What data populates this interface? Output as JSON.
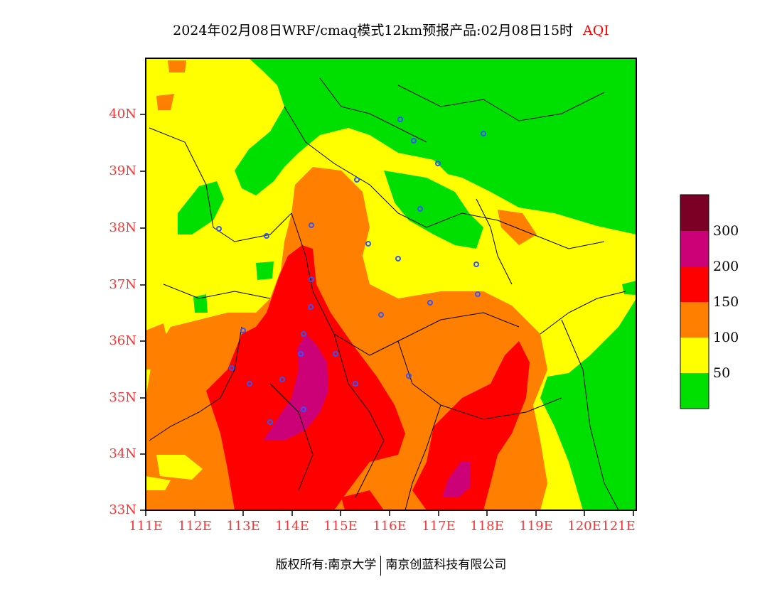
{
  "title": "2024年02月08日WRF/cmaq模式12km预报产品:02月08日15时",
  "title_tag": "AQI",
  "copyright": {
    "left": "版权所有:南京大学",
    "right": "南京创蓝科技有限公司"
  },
  "axes": {
    "lat_labels": [
      "40N",
      "39N",
      "38N",
      "37N",
      "36N",
      "35N",
      "34N",
      "33N"
    ],
    "lon_labels": [
      "111E",
      "112E",
      "113E",
      "114E",
      "115E",
      "116E",
      "117E",
      "118E",
      "119E",
      "120E",
      "121E"
    ]
  },
  "legend": {
    "labels": [
      "300",
      "200",
      "150",
      "100",
      "50"
    ],
    "colors": [
      "#7a0026",
      "#cc0077",
      "#ff0000",
      "#ff7f00",
      "#ffff00",
      "#00e000"
    ]
  },
  "colors": {
    "green": "#00e000",
    "yellow": "#ffff00",
    "orange": "#ff7f00",
    "red": "#ff0000",
    "magenta": "#cc0077",
    "axis_label": "#ff3333"
  }
}
